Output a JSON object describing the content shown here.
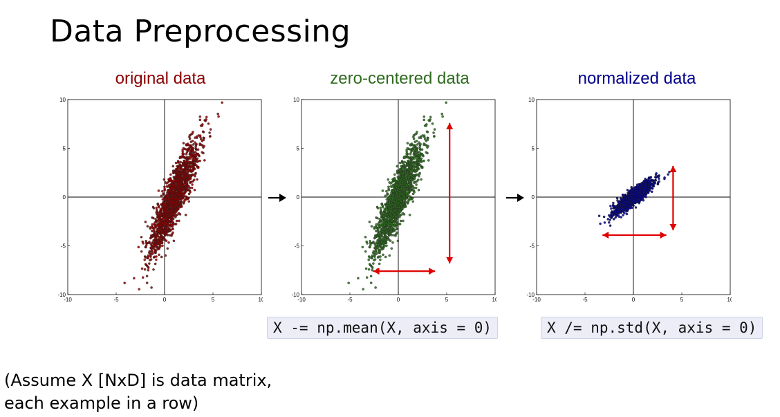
{
  "slide": {
    "title": "Data Preprocessing",
    "note_line1": "(Assume X [NxD] is data matrix,",
    "note_line2": "each example in a row)"
  },
  "code": {
    "center": "X -= np.mean(X, axis = 0)",
    "normalize": "X /= np.std(X, axis = 0)"
  },
  "colors": {
    "original": "#8b0000",
    "centered": "#2e6b1f",
    "normalized": "#00008b",
    "arrow": "#e00000"
  },
  "chart_data": [
    {
      "type": "scatter",
      "title": "original data",
      "xlim": [
        -10,
        10
      ],
      "ylim": [
        -10,
        10
      ],
      "xticks": [
        "-10",
        "-5",
        "0",
        "5",
        "10"
      ],
      "yticks": [
        "10",
        "5",
        "0",
        "-5",
        "-10"
      ],
      "center": [
        1.0,
        0.0
      ],
      "spread_major": 3.2,
      "spread_minor": 0.55,
      "angle_deg": 68,
      "points": 1600
    },
    {
      "type": "scatter",
      "title": "zero-centered data",
      "xlim": [
        -10,
        10
      ],
      "ylim": [
        -10,
        10
      ],
      "xticks": [
        "-10",
        "-5",
        "0",
        "5",
        "10"
      ],
      "yticks": [
        "10",
        "5",
        "0",
        "-5",
        "-10"
      ],
      "center": [
        0.0,
        0.0
      ],
      "spread_major": 3.2,
      "spread_minor": 0.55,
      "angle_deg": 68,
      "points": 1600
    },
    {
      "type": "scatter",
      "title": "normalized data",
      "xlim": [
        -10,
        10
      ],
      "ylim": [
        -10,
        10
      ],
      "xticks": [
        "-10",
        "-5",
        "0",
        "5",
        "10"
      ],
      "yticks": [
        "10",
        "5",
        "0",
        "-5",
        "-10"
      ],
      "center": [
        0.0,
        0.0
      ],
      "spread_major": 1.25,
      "spread_minor": 0.3,
      "angle_deg": 40,
      "points": 1600
    }
  ]
}
